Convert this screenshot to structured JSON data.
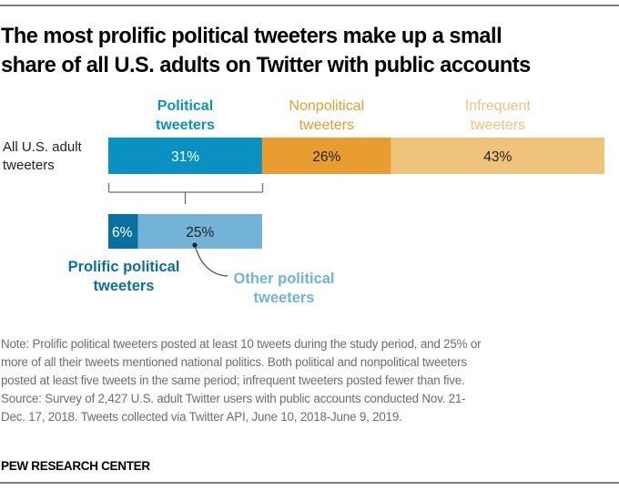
{
  "title_lines": [
    "The most prolific political tweeters make up a small",
    "share of all U.S. adults on Twitter with public accounts"
  ],
  "chart_data": {
    "type": "bar",
    "subtype": "stacked-horizontal",
    "title": "The most prolific political tweeters make up a small share of all U.S. adults on Twitter with public accounts",
    "xlim": [
      0,
      100
    ],
    "row_label_lines": [
      "All U.S. adult",
      "tweeters"
    ],
    "series": [
      {
        "name": "Political tweeters",
        "label_lines": [
          "Political",
          "tweeters"
        ],
        "value": 31,
        "label": "31%",
        "color": "#0b91c1",
        "label_color": "#0b91c1",
        "text_color": "#ffffff",
        "bold": true
      },
      {
        "name": "Nonpolitical tweeters",
        "label_lines": [
          "Nonpolitical",
          "tweeters"
        ],
        "value": 26,
        "label": "26%",
        "color": "#e99d31",
        "label_color": "#e99d31",
        "text_color": "#222222",
        "bold": false
      },
      {
        "name": "Infrequent tweeters",
        "label_lines": [
          "Infrequent",
          "tweeters"
        ],
        "value": 43,
        "label": "43%",
        "color": "#f0c37c",
        "label_color": "#f0c37c",
        "text_color": "#222222",
        "bold": false
      }
    ],
    "breakdown": {
      "of": "Political tweeters",
      "series": [
        {
          "name": "Prolific political tweeters",
          "label_lines": [
            "Prolific political",
            "tweeters"
          ],
          "value": 6,
          "label": "6%",
          "color": "#0a6fa1",
          "label_color": "#0a6fa1",
          "text_color": "#ffffff"
        },
        {
          "name": "Other political tweeters",
          "label_lines": [
            "Other political",
            "tweeters"
          ],
          "value": 25,
          "label": "25%",
          "color": "#73b3d8",
          "label_color": "#73b3d8",
          "text_color": "#222222"
        }
      ]
    }
  },
  "notes": [
    "Note: Prolific political tweeters posted at least 10 tweets during the study period, and 25% or",
    "more of all their tweets mentioned national politics. Both political and nonpolitical tweeters",
    "posted at least five tweets in the same period; infrequent tweeters posted fewer than five.",
    "Source: Survey of 2,427 U.S. adult Twitter users with public accounts conducted Nov. 21-",
    "Dec. 17, 2018. Tweets collected via Twitter API, June 10, 2018-June 9, 2019."
  ],
  "brand": "PEW RESEARCH CENTER"
}
